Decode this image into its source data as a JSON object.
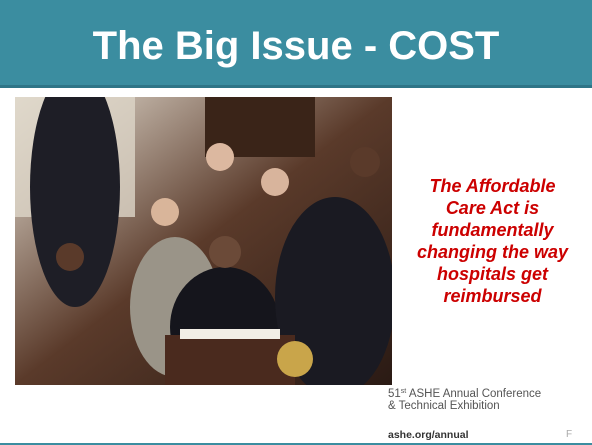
{
  "header": {
    "title": "The Big Issue - COST"
  },
  "statement": {
    "lines": [
      "The Affordable",
      "Care Act is",
      "fundamentally",
      "changing the way",
      "hospitals get",
      "reimbursed"
    ]
  },
  "footer": {
    "number": "51",
    "suffix": "st",
    "line1": "ASHE Annual Conference",
    "line2": "& Technical Exhibition",
    "url": "ashe.org/annual",
    "page_letter": "F"
  }
}
